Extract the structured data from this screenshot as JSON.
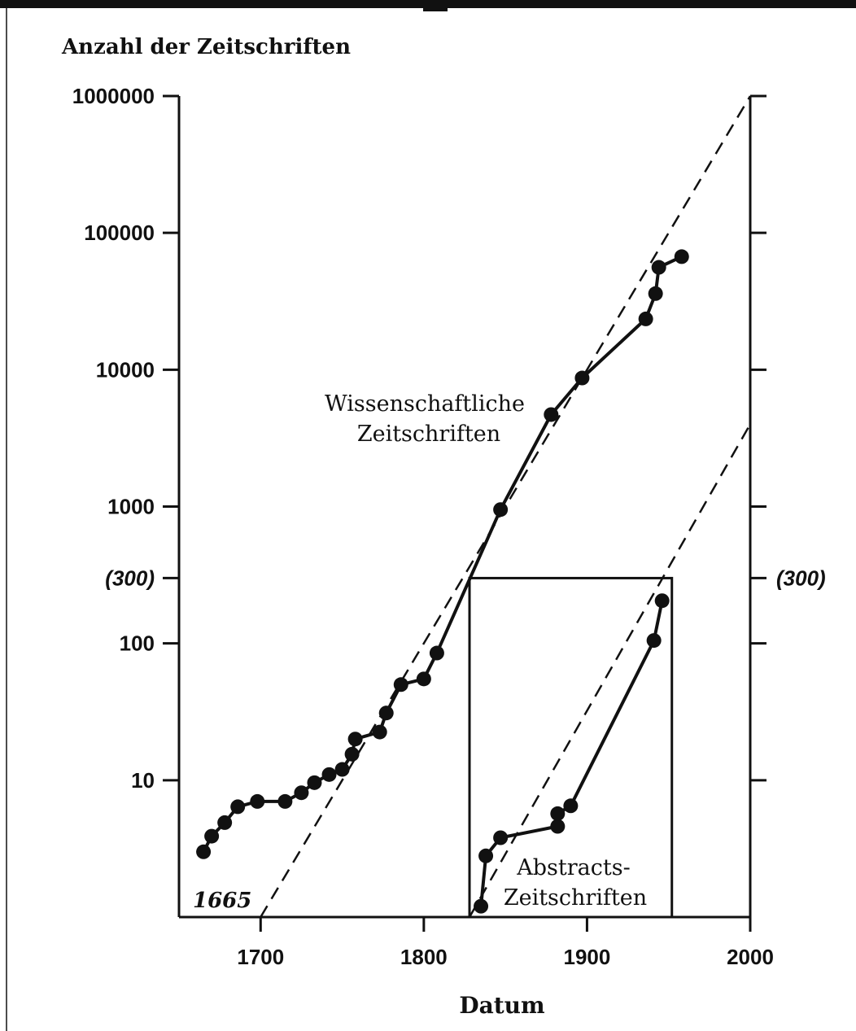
{
  "chart_data": {
    "type": "line",
    "yscale": "log",
    "ylabel": "Anzahl der Zeitschriften",
    "xlabel": "Datum",
    "xlim": [
      1650,
      2000
    ],
    "ylim": [
      1,
      1000000
    ],
    "x_ticks": [
      {
        "value": 1700,
        "label": "1700"
      },
      {
        "value": 1800,
        "label": "1800"
      },
      {
        "value": 1900,
        "label": "1900"
      },
      {
        "value": 2000,
        "label": "2000"
      }
    ],
    "y_ticks": [
      {
        "value": 1000000,
        "label": "1000000"
      },
      {
        "value": 100000,
        "label": "100000"
      },
      {
        "value": 10000,
        "label": "10000"
      },
      {
        "value": 1000,
        "label": "1000"
      },
      {
        "value": 300,
        "label": "(300)"
      },
      {
        "value": 100,
        "label": "100"
      },
      {
        "value": 10,
        "label": "10"
      }
    ],
    "right_ticks": [
      1000000,
      100000,
      10000,
      1000,
      300,
      100,
      10
    ],
    "right_tick_label": {
      "value": 300,
      "label": "(300)"
    },
    "series": [
      {
        "name": "Wissenschaftliche Zeitschriften",
        "label_lines": [
          "Wissenschaftliche",
          "Zeitschriften"
        ],
        "x": [
          1665,
          1670,
          1678,
          1686,
          1698,
          1715,
          1725,
          1733,
          1742,
          1750,
          1756,
          1758,
          1773,
          1777,
          1786,
          1800,
          1808,
          1847,
          1878,
          1897,
          1936,
          1942,
          1944,
          1958
        ],
        "y": [
          3,
          3.9,
          4.9,
          6.4,
          7,
          7,
          8.1,
          9.6,
          11,
          12,
          15.5,
          20,
          22.5,
          31,
          50,
          55,
          85,
          950,
          4700,
          8700,
          23500,
          36000,
          56000,
          67000
        ]
      },
      {
        "name": "Abstracts-Zeitschriften",
        "label_lines": [
          "Abstracts-",
          "Zeitschriften"
        ],
        "x": [
          1835,
          1838,
          1847,
          1882,
          1882,
          1890,
          1941,
          1946
        ],
        "y": [
          1.2,
          2.8,
          3.8,
          4.6,
          5.7,
          6.5,
          105,
          205
        ]
      }
    ],
    "trend_lines": [
      {
        "x": [
          1700,
          2000
        ],
        "y": [
          1,
          1000000
        ]
      },
      {
        "x": [
          1828,
          2000
        ],
        "y": [
          1,
          4000
        ]
      }
    ],
    "box": {
      "x": [
        1828,
        1952
      ],
      "y": [
        1,
        300
      ]
    },
    "annotation": "1665"
  }
}
